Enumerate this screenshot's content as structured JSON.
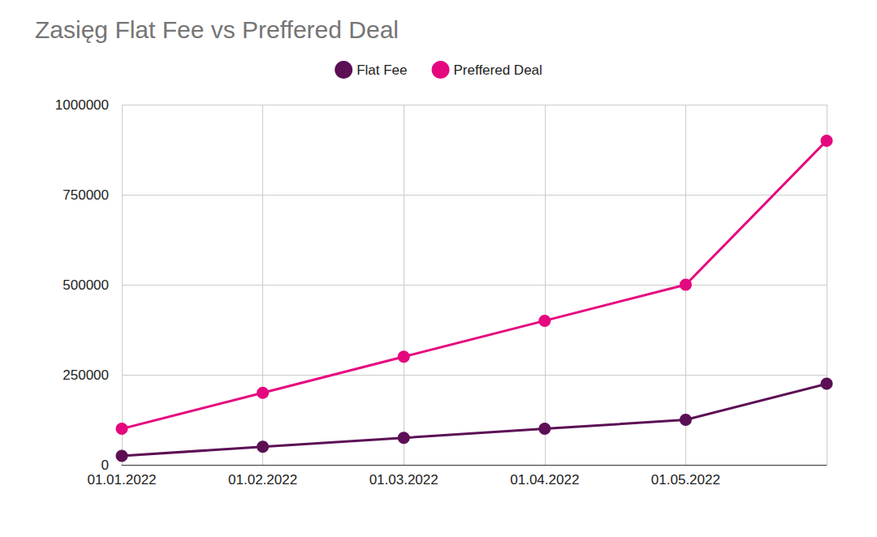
{
  "chart_data": {
    "type": "line",
    "title": "Zasięg Flat Fee vs Preffered Deal",
    "categories": [
      "01.01.2022",
      "01.02.2022",
      "01.03.2022",
      "01.04.2022",
      "01.05.2022",
      null
    ],
    "series": [
      {
        "name": "Flat Fee",
        "color": "#5c0f55",
        "values": [
          25000,
          50000,
          75000,
          100000,
          125000,
          225000
        ]
      },
      {
        "name": "Preffered Deal",
        "color": "#e5077e",
        "values": [
          100000,
          200000,
          300000,
          400000,
          500000,
          900000
        ]
      }
    ],
    "ylim": [
      0,
      1000000
    ],
    "yticks": [
      0,
      250000,
      500000,
      750000,
      1000000
    ],
    "grid": true,
    "legend": "top",
    "marker": "circle"
  }
}
